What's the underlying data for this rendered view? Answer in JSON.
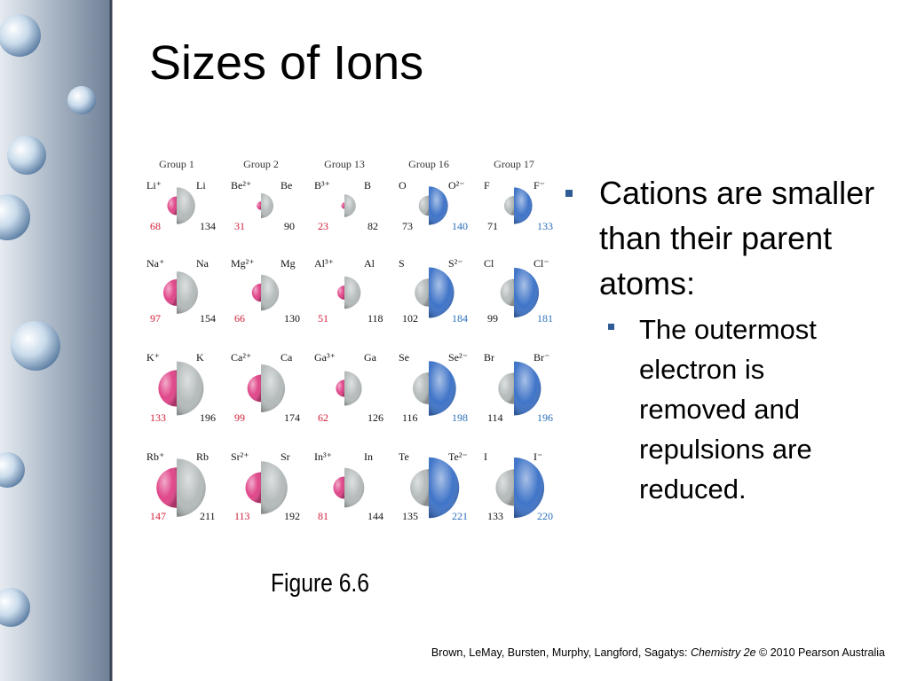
{
  "title": "Sizes of Ions",
  "figure": {
    "groups": [
      {
        "label": "Group 1",
        "ion_side": "left",
        "ion_color": "#e0468a",
        "ion_value_color": "#d0203a"
      },
      {
        "label": "Group 2",
        "ion_side": "left",
        "ion_color": "#e0468a",
        "ion_value_color": "#d0203a"
      },
      {
        "label": "Group 13",
        "ion_side": "left",
        "ion_color": "#e0468a",
        "ion_value_color": "#d0203a"
      },
      {
        "label": "Group 16",
        "ion_side": "right",
        "ion_color": "#3f74c8",
        "ion_value_color": "#2a6fb8"
      },
      {
        "label": "Group 17",
        "ion_side": "right",
        "ion_color": "#3f74c8",
        "ion_value_color": "#2a6fb8"
      }
    ],
    "atom_color": "#b5bbbb",
    "rows": [
      [
        {
          "left_label": "Li⁺",
          "right_label": "Li",
          "left_value": 68,
          "right_value": 134
        },
        {
          "left_label": "Be²⁺",
          "right_label": "Be",
          "left_value": 31,
          "right_value": 90
        },
        {
          "left_label": "B³⁺",
          "right_label": "B",
          "left_value": 23,
          "right_value": 82
        },
        {
          "left_label": "O",
          "right_label": "O²⁻",
          "left_value": 73,
          "right_value": 140
        },
        {
          "left_label": "F",
          "right_label": "F⁻",
          "left_value": 71,
          "right_value": 133
        }
      ],
      [
        {
          "left_label": "Na⁺",
          "right_label": "Na",
          "left_value": 97,
          "right_value": 154
        },
        {
          "left_label": "Mg²⁺",
          "right_label": "Mg",
          "left_value": 66,
          "right_value": 130
        },
        {
          "left_label": "Al³⁺",
          "right_label": "Al",
          "left_value": 51,
          "right_value": 118
        },
        {
          "left_label": "S",
          "right_label": "S²⁻",
          "left_value": 102,
          "right_value": 184
        },
        {
          "left_label": "Cl",
          "right_label": "Cl⁻",
          "left_value": 99,
          "right_value": 181
        }
      ],
      [
        {
          "left_label": "K⁺",
          "right_label": "K",
          "left_value": 133,
          "right_value": 196
        },
        {
          "left_label": "Ca²⁺",
          "right_label": "Ca",
          "left_value": 99,
          "right_value": 174
        },
        {
          "left_label": "Ga³⁺",
          "right_label": "Ga",
          "left_value": 62,
          "right_value": 126
        },
        {
          "left_label": "Se",
          "right_label": "Se²⁻",
          "left_value": 116,
          "right_value": 198
        },
        {
          "left_label": "Br",
          "right_label": "Br⁻",
          "left_value": 114,
          "right_value": 196
        }
      ],
      [
        {
          "left_label": "Rb⁺",
          "right_label": "Rb",
          "left_value": 147,
          "right_value": 211
        },
        {
          "left_label": "Sr²⁺",
          "right_label": "Sr",
          "left_value": 113,
          "right_value": 192
        },
        {
          "left_label": "In³⁺",
          "right_label": "In",
          "left_value": 81,
          "right_value": 144
        },
        {
          "left_label": "Te",
          "right_label": "Te²⁻",
          "left_value": 135,
          "right_value": 221
        },
        {
          "left_label": "I",
          "right_label": "I⁻",
          "left_value": 133,
          "right_value": 220
        }
      ]
    ],
    "caption": "Figure 6.6"
  },
  "bullets": [
    {
      "text": "Cations are smaller than their parent atoms:",
      "sub": [
        "The outermost electron is removed and repulsions are reduced."
      ]
    }
  ],
  "citation": {
    "authors": "Brown, LeMay, Bursten, Murphy, Langford, Sagatys: ",
    "book": "Chemistry 2e",
    "rest": " © 2010 Pearson Australia"
  }
}
